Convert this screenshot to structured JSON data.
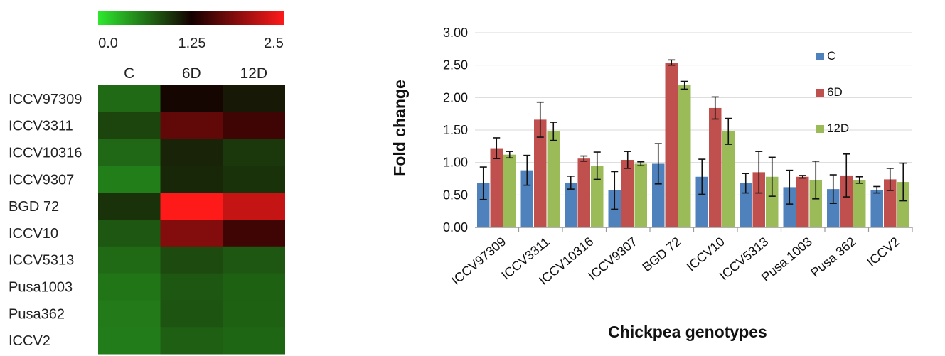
{
  "chart_data": [
    {
      "type": "heatmap",
      "colorbar": {
        "colors": [
          "#2ee82e",
          "#140000",
          "#ff1a1a"
        ],
        "ticks": [
          "0.0",
          "1.25",
          "2.5"
        ]
      },
      "columns": [
        "C",
        "6D",
        "12D"
      ],
      "rows": [
        "ICCV97309",
        "ICCV3311",
        "ICCV10316",
        "ICCV9307",
        "BGD 72",
        "ICCV10",
        "ICCV5313",
        "Pusa1003",
        "Pusa362",
        "ICCV2"
      ],
      "values": [
        [
          0.68,
          1.22,
          1.12
        ],
        [
          0.88,
          1.66,
          1.48
        ],
        [
          0.69,
          1.06,
          0.95
        ],
        [
          0.57,
          1.04,
          0.98
        ],
        [
          0.98,
          2.54,
          2.19
        ],
        [
          0.78,
          1.84,
          1.48
        ],
        [
          0.68,
          0.85,
          0.78
        ],
        [
          0.62,
          0.78,
          0.73
        ],
        [
          0.59,
          0.8,
          0.73
        ],
        [
          0.58,
          0.74,
          0.7
        ]
      ],
      "vmin": 0,
      "vmax": 2.5
    },
    {
      "type": "bar",
      "ylabel": "Fold change",
      "xlabel": "Chickpea genotypes",
      "ylim": [
        0,
        3
      ],
      "yticks": [
        "0.00",
        "0.50",
        "1.00",
        "1.50",
        "2.00",
        "2.50",
        "3.00"
      ],
      "categories": [
        "ICCV97309",
        "ICCV3311",
        "ICCV10316",
        "ICCV9307",
        "BGD 72",
        "ICCV10",
        "ICCV5313",
        "Pusa 1003",
        "Pusa 362",
        "ICCV2"
      ],
      "series": [
        {
          "name": "C",
          "color": "#4f81bd",
          "values": [
            0.68,
            0.88,
            0.69,
            0.57,
            0.98,
            0.78,
            0.68,
            0.62,
            0.59,
            0.58
          ],
          "errors": [
            0.25,
            0.23,
            0.1,
            0.29,
            0.31,
            0.27,
            0.15,
            0.26,
            0.22,
            0.05
          ]
        },
        {
          "name": "6D",
          "color": "#c0504d",
          "values": [
            1.22,
            1.66,
            1.06,
            1.04,
            2.54,
            1.84,
            0.85,
            0.78,
            0.8,
            0.74
          ],
          "errors": [
            0.16,
            0.27,
            0.04,
            0.13,
            0.04,
            0.17,
            0.32,
            0.02,
            0.33,
            0.17
          ]
        },
        {
          "name": "12D",
          "color": "#9bbb59",
          "values": [
            1.12,
            1.48,
            0.95,
            0.98,
            2.19,
            1.48,
            0.78,
            0.73,
            0.73,
            0.7
          ],
          "errors": [
            0.05,
            0.14,
            0.21,
            0.03,
            0.06,
            0.2,
            0.3,
            0.29,
            0.05,
            0.29
          ]
        }
      ],
      "grid": true,
      "legend_position": "right"
    }
  ]
}
